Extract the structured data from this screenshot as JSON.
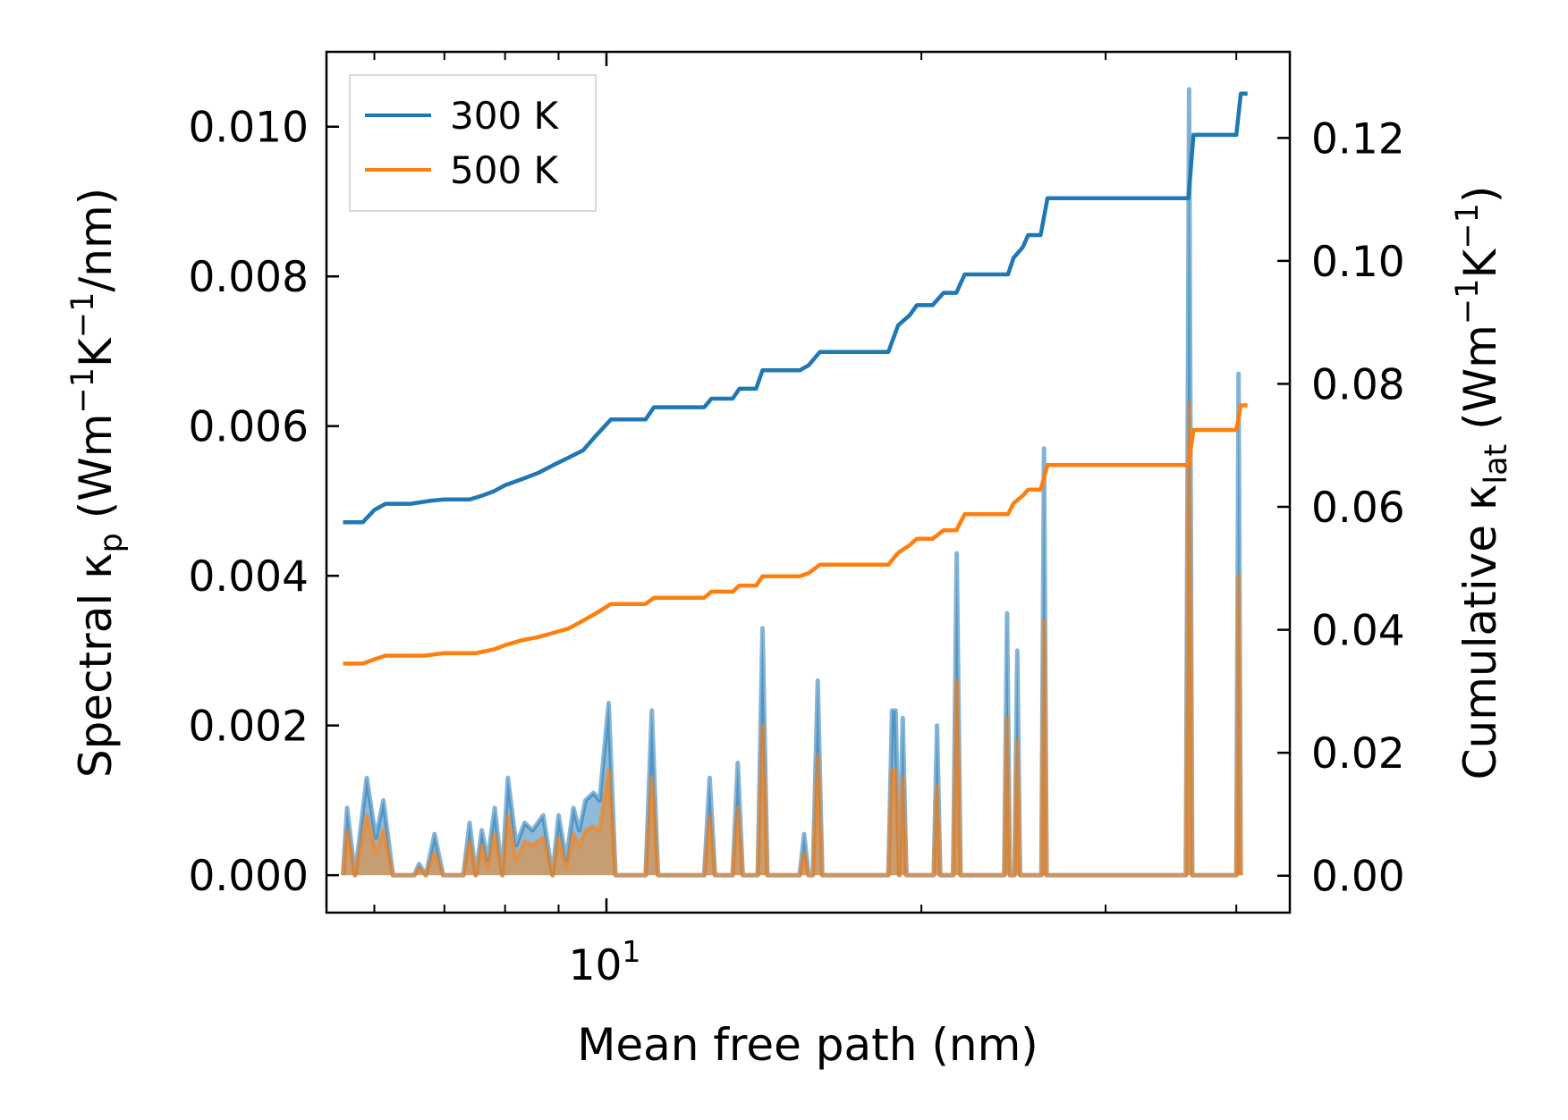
{
  "chart_data": {
    "type": "line",
    "xscale": "log",
    "xlim": [
      5.4,
      45
    ],
    "xlabel": "Mean free path (nm)",
    "x_ticklabel": {
      "value": 10,
      "base": "10",
      "exponent": "1"
    },
    "y_left": {
      "label_main": "Spectral κ",
      "label_sub": "p",
      "label_units": [
        "(Wm",
        "−1",
        "K",
        "−1",
        "/nm)"
      ],
      "ylim": [
        -0.0005,
        0.011
      ],
      "ticks": [
        0.0,
        0.002,
        0.004,
        0.006,
        0.008,
        0.01
      ],
      "ticklabels": [
        "0.000",
        "0.002",
        "0.004",
        "0.006",
        "0.008",
        "0.010"
      ]
    },
    "y_right": {
      "label_main": "Cumulative κ",
      "label_sub": "lat",
      "label_units": [
        "(Wm",
        "−1",
        "K",
        "−1",
        ")"
      ],
      "ylim": [
        -0.006,
        0.134
      ],
      "ticks": [
        0.0,
        0.02,
        0.04,
        0.06,
        0.08,
        0.1,
        0.12
      ],
      "ticklabels": [
        "0.00",
        "0.02",
        "0.04",
        "0.06",
        "0.08",
        "0.10",
        "0.12"
      ]
    },
    "legend": {
      "position": "top-left",
      "entries": [
        {
          "label": "300 K",
          "color": "#1f77b4"
        },
        {
          "label": "500 K",
          "color": "#ff7f0e"
        }
      ]
    },
    "series": [
      {
        "name": "300 K",
        "color": "#1f77b4",
        "axis": "right",
        "kind": "cumulative",
        "points": [
          [
            5.6,
            0.0575
          ],
          [
            5.85,
            0.0575
          ],
          [
            6.0,
            0.0595
          ],
          [
            6.15,
            0.0605
          ],
          [
            6.5,
            0.0605
          ],
          [
            6.8,
            0.061
          ],
          [
            7.0,
            0.0612
          ],
          [
            7.4,
            0.0612
          ],
          [
            7.6,
            0.0618
          ],
          [
            7.8,
            0.0625
          ],
          [
            8.0,
            0.0635
          ],
          [
            8.3,
            0.0645
          ],
          [
            8.6,
            0.0655
          ],
          [
            8.9,
            0.0668
          ],
          [
            9.2,
            0.068
          ],
          [
            9.5,
            0.0692
          ],
          [
            9.8,
            0.0718
          ],
          [
            10.1,
            0.0742
          ],
          [
            10.9,
            0.0742
          ],
          [
            11.1,
            0.0762
          ],
          [
            12.4,
            0.0762
          ],
          [
            12.6,
            0.0776
          ],
          [
            13.2,
            0.0776
          ],
          [
            13.4,
            0.0792
          ],
          [
            13.9,
            0.0792
          ],
          [
            14.1,
            0.0822
          ],
          [
            15.3,
            0.0822
          ],
          [
            15.6,
            0.083
          ],
          [
            16.0,
            0.0852
          ],
          [
            18.6,
            0.0852
          ],
          [
            19.0,
            0.0895
          ],
          [
            19.5,
            0.0912
          ],
          [
            19.8,
            0.0928
          ],
          [
            20.5,
            0.0928
          ],
          [
            21.0,
            0.0948
          ],
          [
            21.6,
            0.0948
          ],
          [
            22.0,
            0.0978
          ],
          [
            24.2,
            0.0978
          ],
          [
            24.5,
            0.1005
          ],
          [
            25.0,
            0.1022
          ],
          [
            25.3,
            0.1042
          ],
          [
            26.0,
            0.1042
          ],
          [
            26.4,
            0.1102
          ],
          [
            36.0,
            0.1102
          ],
          [
            36.4,
            0.1205
          ],
          [
            40.0,
            0.1205
          ],
          [
            40.4,
            0.1272
          ],
          [
            41.0,
            0.1272
          ]
        ]
      },
      {
        "name": "500 K",
        "color": "#ff7f0e",
        "axis": "right",
        "kind": "cumulative",
        "points": [
          [
            5.6,
            0.0345
          ],
          [
            5.85,
            0.0345
          ],
          [
            6.0,
            0.0352
          ],
          [
            6.15,
            0.0358
          ],
          [
            6.7,
            0.0358
          ],
          [
            7.0,
            0.0362
          ],
          [
            7.5,
            0.0362
          ],
          [
            7.8,
            0.0368
          ],
          [
            8.0,
            0.0375
          ],
          [
            8.3,
            0.0383
          ],
          [
            8.6,
            0.0388
          ],
          [
            8.9,
            0.0395
          ],
          [
            9.2,
            0.0402
          ],
          [
            9.5,
            0.0415
          ],
          [
            9.8,
            0.0428
          ],
          [
            10.1,
            0.0442
          ],
          [
            10.9,
            0.0442
          ],
          [
            11.1,
            0.0452
          ],
          [
            12.4,
            0.0452
          ],
          [
            12.6,
            0.0462
          ],
          [
            13.2,
            0.0462
          ],
          [
            13.4,
            0.0472
          ],
          [
            13.9,
            0.0472
          ],
          [
            14.1,
            0.0487
          ],
          [
            15.3,
            0.0487
          ],
          [
            15.6,
            0.0492
          ],
          [
            16.0,
            0.0506
          ],
          [
            18.6,
            0.0506
          ],
          [
            19.0,
            0.0525
          ],
          [
            19.5,
            0.0538
          ],
          [
            19.8,
            0.0548
          ],
          [
            20.5,
            0.0548
          ],
          [
            21.0,
            0.0562
          ],
          [
            21.6,
            0.0562
          ],
          [
            22.0,
            0.0588
          ],
          [
            24.2,
            0.0588
          ],
          [
            24.5,
            0.0606
          ],
          [
            25.0,
            0.0618
          ],
          [
            25.3,
            0.0628
          ],
          [
            26.0,
            0.0628
          ],
          [
            26.4,
            0.0668
          ],
          [
            36.0,
            0.0668
          ],
          [
            36.4,
            0.0725
          ],
          [
            40.0,
            0.0725
          ],
          [
            40.4,
            0.0765
          ],
          [
            41.0,
            0.0765
          ]
        ]
      },
      {
        "name": "300 K spectral",
        "color": "#1f77b4",
        "axis": "left",
        "kind": "spectral-fill",
        "points": [
          [
            5.6,
            0.0
          ],
          [
            5.65,
            0.0009
          ],
          [
            5.75,
            0.0
          ],
          [
            5.9,
            0.0013
          ],
          [
            6.02,
            0.0005
          ],
          [
            6.12,
            0.001
          ],
          [
            6.25,
            0.0
          ],
          [
            6.55,
            0.0
          ],
          [
            6.62,
            0.00015
          ],
          [
            6.72,
            0.0
          ],
          [
            6.85,
            0.00055
          ],
          [
            6.98,
            0.0
          ],
          [
            7.3,
            0.0
          ],
          [
            7.4,
            0.0007
          ],
          [
            7.5,
            0.0
          ],
          [
            7.6,
            0.0006
          ],
          [
            7.7,
            0.0002
          ],
          [
            7.82,
            0.0009
          ],
          [
            7.95,
            0.0
          ],
          [
            8.05,
            0.0013
          ],
          [
            8.2,
            0.0004
          ],
          [
            8.35,
            0.0007
          ],
          [
            8.5,
            0.0006
          ],
          [
            8.7,
            0.0008
          ],
          [
            8.88,
            0.0
          ],
          [
            9.0,
            0.0008
          ],
          [
            9.15,
            0.0002
          ],
          [
            9.3,
            0.0009
          ],
          [
            9.42,
            0.0006
          ],
          [
            9.55,
            0.001
          ],
          [
            9.72,
            0.0011
          ],
          [
            9.85,
            0.001
          ],
          [
            10.05,
            0.0023
          ],
          [
            10.2,
            0.0
          ],
          [
            10.9,
            0.0
          ],
          [
            11.05,
            0.0022
          ],
          [
            11.2,
            0.0
          ],
          [
            12.4,
            0.0
          ],
          [
            12.55,
            0.0013
          ],
          [
            12.7,
            0.0
          ],
          [
            13.2,
            0.0
          ],
          [
            13.35,
            0.0015
          ],
          [
            13.5,
            0.0
          ],
          [
            13.95,
            0.0
          ],
          [
            14.1,
            0.0033
          ],
          [
            14.25,
            0.0
          ],
          [
            15.3,
            0.0
          ],
          [
            15.45,
            0.00055
          ],
          [
            15.6,
            0.0
          ],
          [
            15.75,
            0.0
          ],
          [
            15.92,
            0.0026
          ],
          [
            16.08,
            0.0
          ],
          [
            18.6,
            0.0
          ],
          [
            18.75,
            0.0022
          ],
          [
            18.9,
            0.0022
          ],
          [
            19.05,
            0.0
          ],
          [
            19.2,
            0.0021
          ],
          [
            19.35,
            0.0
          ],
          [
            20.55,
            0.0
          ],
          [
            20.7,
            0.002
          ],
          [
            20.85,
            0.0
          ],
          [
            21.45,
            0.0
          ],
          [
            21.62,
            0.0043
          ],
          [
            21.8,
            0.0
          ],
          [
            24.0,
            0.0
          ],
          [
            24.15,
            0.0035
          ],
          [
            24.3,
            0.0
          ],
          [
            24.55,
            0.0
          ],
          [
            24.7,
            0.003
          ],
          [
            24.85,
            0.0
          ],
          [
            26.05,
            0.0
          ],
          [
            26.2,
            0.0057
          ],
          [
            26.35,
            0.0
          ],
          [
            35.8,
            0.0
          ],
          [
            36.05,
            0.0105
          ],
          [
            36.3,
            0.0
          ],
          [
            40.0,
            0.0
          ],
          [
            40.2,
            0.0067
          ],
          [
            40.4,
            0.0
          ]
        ]
      },
      {
        "name": "500 K spectral",
        "color": "#ff7f0e",
        "axis": "left",
        "kind": "spectral-fill",
        "points": [
          [
            5.6,
            0.0
          ],
          [
            5.65,
            0.0006
          ],
          [
            5.75,
            0.0
          ],
          [
            5.9,
            0.0008
          ],
          [
            6.02,
            0.0003
          ],
          [
            6.12,
            0.0006
          ],
          [
            6.25,
            0.0
          ],
          [
            6.55,
            0.0
          ],
          [
            6.62,
            0.0001
          ],
          [
            6.72,
            0.0
          ],
          [
            6.85,
            0.0003
          ],
          [
            6.98,
            0.0
          ],
          [
            7.3,
            0.0
          ],
          [
            7.4,
            0.00045
          ],
          [
            7.5,
            0.0
          ],
          [
            7.6,
            0.0004
          ],
          [
            7.7,
            0.0001
          ],
          [
            7.82,
            0.00055
          ],
          [
            7.95,
            0.0
          ],
          [
            8.05,
            0.0008
          ],
          [
            8.2,
            0.0002
          ],
          [
            8.35,
            0.00045
          ],
          [
            8.5,
            0.0004
          ],
          [
            8.7,
            0.0005
          ],
          [
            8.88,
            0.0
          ],
          [
            9.0,
            0.0005
          ],
          [
            9.15,
            0.0001
          ],
          [
            9.3,
            0.00055
          ],
          [
            9.42,
            0.0004
          ],
          [
            9.55,
            0.0006
          ],
          [
            9.72,
            0.00065
          ],
          [
            9.85,
            0.0006
          ],
          [
            10.05,
            0.0014
          ],
          [
            10.2,
            0.0
          ],
          [
            10.9,
            0.0
          ],
          [
            11.05,
            0.0013
          ],
          [
            11.2,
            0.0
          ],
          [
            12.4,
            0.0
          ],
          [
            12.55,
            0.0008
          ],
          [
            12.7,
            0.0
          ],
          [
            13.2,
            0.0
          ],
          [
            13.35,
            0.0009
          ],
          [
            13.5,
            0.0
          ],
          [
            13.95,
            0.0
          ],
          [
            14.1,
            0.002
          ],
          [
            14.25,
            0.0
          ],
          [
            15.3,
            0.0
          ],
          [
            15.45,
            0.0003
          ],
          [
            15.6,
            0.0
          ],
          [
            15.75,
            0.0
          ],
          [
            15.92,
            0.0016
          ],
          [
            16.08,
            0.0
          ],
          [
            18.6,
            0.0
          ],
          [
            18.75,
            0.0014
          ],
          [
            18.9,
            0.0014
          ],
          [
            19.05,
            0.0
          ],
          [
            19.2,
            0.0013
          ],
          [
            19.35,
            0.0
          ],
          [
            20.55,
            0.0
          ],
          [
            20.7,
            0.0012
          ],
          [
            20.85,
            0.0
          ],
          [
            21.45,
            0.0
          ],
          [
            21.62,
            0.0026
          ],
          [
            21.8,
            0.0
          ],
          [
            24.0,
            0.0
          ],
          [
            24.15,
            0.0021
          ],
          [
            24.3,
            0.0
          ],
          [
            24.55,
            0.0
          ],
          [
            24.7,
            0.0018
          ],
          [
            24.85,
            0.0
          ],
          [
            26.05,
            0.0
          ],
          [
            26.2,
            0.0034
          ],
          [
            26.35,
            0.0
          ],
          [
            35.8,
            0.0
          ],
          [
            36.05,
            0.0063
          ],
          [
            36.3,
            0.0
          ],
          [
            40.0,
            0.0
          ],
          [
            40.2,
            0.004
          ],
          [
            40.4,
            0.0
          ]
        ]
      }
    ]
  }
}
